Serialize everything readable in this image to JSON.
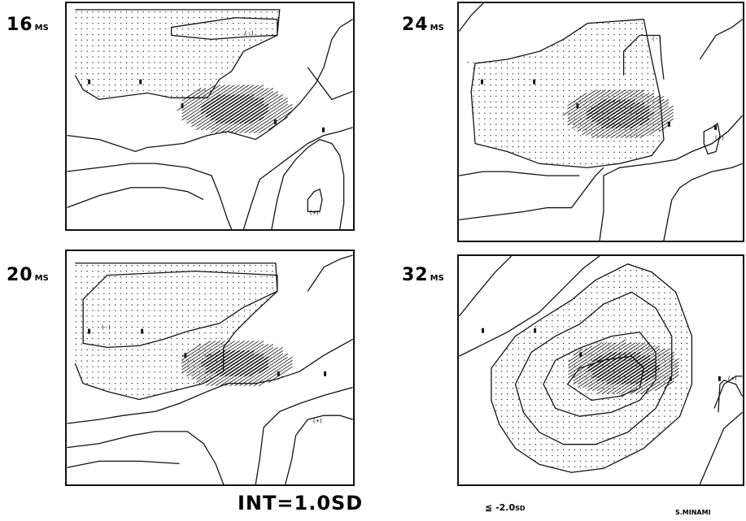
{
  "panels": [
    {
      "id": "p16",
      "time": "16",
      "unit": "MS",
      "signs": [
        "(-)",
        "(+)"
      ]
    },
    {
      "id": "p24",
      "time": "24",
      "unit": "MS",
      "signs": [
        "(-)",
        "(+)"
      ]
    },
    {
      "id": "p20",
      "time": "20",
      "unit": "MS",
      "signs": [
        "(-)",
        "(+)"
      ]
    },
    {
      "id": "p32",
      "time": "32",
      "unit": "MS",
      "signs": [
        "(+)"
      ]
    }
  ],
  "interval_label": "INT=1.0SD",
  "legend": {
    "symbol": "≦",
    "value": "-2.0",
    "unit": "SD"
  },
  "author": "S.MINAMI",
  "colors": {
    "ink": "#111111",
    "paper": "#ffffff"
  }
}
